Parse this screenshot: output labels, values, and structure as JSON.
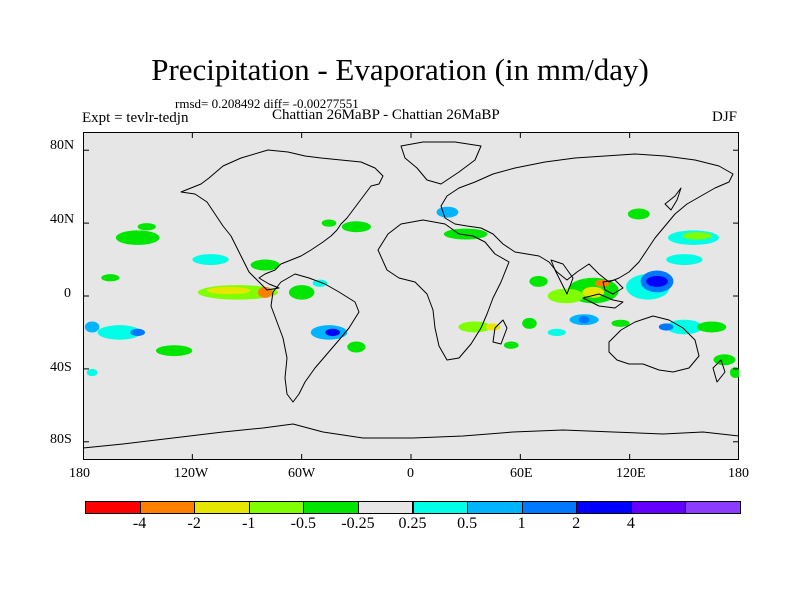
{
  "chart_data": {
    "type": "heatmap",
    "title": "Precipitation - Evaporation (in mm/day)",
    "stats": "rmsd= 0.208492 diff= -0.00277551",
    "experiment": "Expt = tevlr-tedjn",
    "subtitle": "Chattian  26MaBP - Chattian  26MaBP",
    "season": "DJF",
    "x_range": [
      -180,
      180
    ],
    "y_range": [
      -90,
      90
    ],
    "x_ticks": [
      {
        "value": -180,
        "label": "180"
      },
      {
        "value": -120,
        "label": "120W"
      },
      {
        "value": -60,
        "label": "60W"
      },
      {
        "value": 0,
        "label": "0"
      },
      {
        "value": 60,
        "label": "60E"
      },
      {
        "value": 120,
        "label": "120E"
      },
      {
        "value": 180,
        "label": "180"
      }
    ],
    "y_ticks": [
      {
        "value": 80,
        "label": "80N"
      },
      {
        "value": 40,
        "label": "40N"
      },
      {
        "value": 0,
        "label": "0"
      },
      {
        "value": -40,
        "label": "40S"
      },
      {
        "value": -80,
        "label": "80S"
      }
    ],
    "colorbar": {
      "colors": [
        "#ff0000",
        "#ff8000",
        "#e6e600",
        "#80ff00",
        "#00e600",
        "#e6e6e6",
        "#00ffe6",
        "#00b4ff",
        "#0078ff",
        "#0000ff",
        "#6400ff",
        "#8c3cff"
      ],
      "labels": [
        "-4",
        "-2",
        "-1",
        "-0.5",
        "-0.25",
        "0.25",
        "0.5",
        "1",
        "2",
        "4"
      ]
    },
    "anomaly_patches": [
      {
        "lon": -95,
        "lat": 2,
        "rx": 22,
        "ry": 4,
        "color": "#80ff00"
      },
      {
        "lon": -100,
        "lat": 3,
        "rx": 12,
        "ry": 2,
        "color": "#e6e600"
      },
      {
        "lon": -80,
        "lat": 2,
        "rx": 4,
        "ry": 3,
        "color": "#ff8000"
      },
      {
        "lon": -150,
        "lat": 32,
        "rx": 12,
        "ry": 4,
        "color": "#00e600"
      },
      {
        "lon": -165,
        "lat": 10,
        "rx": 5,
        "ry": 2,
        "color": "#00e600"
      },
      {
        "lon": -110,
        "lat": 20,
        "rx": 10,
        "ry": 3,
        "color": "#00ffe6"
      },
      {
        "lon": -80,
        "lat": 17,
        "rx": 8,
        "ry": 3,
        "color": "#00e600"
      },
      {
        "lon": -145,
        "lat": 38,
        "rx": 5,
        "ry": 2,
        "color": "#00e600"
      },
      {
        "lon": -160,
        "lat": -20,
        "rx": 12,
        "ry": 4,
        "color": "#00ffe6"
      },
      {
        "lon": -150,
        "lat": -20,
        "rx": 4,
        "ry": 2,
        "color": "#0078ff"
      },
      {
        "lon": -130,
        "lat": -30,
        "rx": 10,
        "ry": 3,
        "color": "#00e600"
      },
      {
        "lon": -175,
        "lat": -17,
        "rx": 4,
        "ry": 3,
        "color": "#00b4ff"
      },
      {
        "lon": -45,
        "lat": -20,
        "rx": 10,
        "ry": 4,
        "color": "#00b4ff"
      },
      {
        "lon": -43,
        "lat": -20,
        "rx": 4,
        "ry": 2,
        "color": "#0000ff"
      },
      {
        "lon": -30,
        "lat": -28,
        "rx": 5,
        "ry": 3,
        "color": "#00e600"
      },
      {
        "lon": -60,
        "lat": 2,
        "rx": 7,
        "ry": 4,
        "color": "#00e600"
      },
      {
        "lon": -50,
        "lat": 7,
        "rx": 4,
        "ry": 2,
        "color": "#00ffe6"
      },
      {
        "lon": -30,
        "lat": 38,
        "rx": 8,
        "ry": 3,
        "color": "#00e600"
      },
      {
        "lon": -45,
        "lat": 40,
        "rx": 4,
        "ry": 2,
        "color": "#00e600"
      },
      {
        "lon": 35,
        "lat": -17,
        "rx": 9,
        "ry": 3,
        "color": "#80ff00"
      },
      {
        "lon": 45,
        "lat": -17,
        "rx": 4,
        "ry": 2,
        "color": "#e6e600"
      },
      {
        "lon": 55,
        "lat": -27,
        "rx": 4,
        "ry": 2,
        "color": "#00e600"
      },
      {
        "lon": 65,
        "lat": -15,
        "rx": 4,
        "ry": 3,
        "color": "#00e600"
      },
      {
        "lon": 30,
        "lat": 34,
        "rx": 12,
        "ry": 3,
        "color": "#00e600"
      },
      {
        "lon": 20,
        "lat": 46,
        "rx": 6,
        "ry": 3,
        "color": "#00b4ff"
      },
      {
        "lon": 70,
        "lat": 8,
        "rx": 5,
        "ry": 3,
        "color": "#00e600"
      },
      {
        "lon": 100,
        "lat": 3,
        "rx": 14,
        "ry": 7,
        "color": "#00e600"
      },
      {
        "lon": 100,
        "lat": 2,
        "rx": 6,
        "ry": 3,
        "color": "#e6e600"
      },
      {
        "lon": 105,
        "lat": 7,
        "rx": 4,
        "ry": 2,
        "color": "#ff8000"
      },
      {
        "lon": 85,
        "lat": 0,
        "rx": 10,
        "ry": 4,
        "color": "#80ff00"
      },
      {
        "lon": 95,
        "lat": -13,
        "rx": 8,
        "ry": 3,
        "color": "#00b4ff"
      },
      {
        "lon": 95,
        "lat": -13,
        "rx": 3,
        "ry": 2,
        "color": "#0078ff"
      },
      {
        "lon": 115,
        "lat": -15,
        "rx": 5,
        "ry": 2,
        "color": "#00e600"
      },
      {
        "lon": 80,
        "lat": -20,
        "rx": 5,
        "ry": 2,
        "color": "#00ffe6"
      },
      {
        "lon": 130,
        "lat": 5,
        "rx": 12,
        "ry": 7,
        "color": "#00ffe6"
      },
      {
        "lon": 135,
        "lat": 8,
        "rx": 9,
        "ry": 6,
        "color": "#0078ff"
      },
      {
        "lon": 135,
        "lat": 8,
        "rx": 6,
        "ry": 3,
        "color": "#0000ff"
      },
      {
        "lon": 155,
        "lat": 32,
        "rx": 14,
        "ry": 4,
        "color": "#00ffe6"
      },
      {
        "lon": 157,
        "lat": 33,
        "rx": 8,
        "ry": 2,
        "color": "#80ff00"
      },
      {
        "lon": 125,
        "lat": 45,
        "rx": 6,
        "ry": 3,
        "color": "#00e600"
      },
      {
        "lon": 150,
        "lat": 20,
        "rx": 10,
        "ry": 3,
        "color": "#00ffe6"
      },
      {
        "lon": 150,
        "lat": -17,
        "rx": 10,
        "ry": 4,
        "color": "#00ffe6"
      },
      {
        "lon": 140,
        "lat": -17,
        "rx": 4,
        "ry": 2,
        "color": "#0078ff"
      },
      {
        "lon": 165,
        "lat": -17,
        "rx": 8,
        "ry": 3,
        "color": "#00e600"
      },
      {
        "lon": 172,
        "lat": -35,
        "rx": 6,
        "ry": 3,
        "color": "#00e600"
      },
      {
        "lon": -175,
        "lat": -42,
        "rx": 3,
        "ry": 2,
        "color": "#00ffe6"
      },
      {
        "lon": 178,
        "lat": -42,
        "rx": 3,
        "ry": 3,
        "color": "#00e600"
      }
    ]
  }
}
